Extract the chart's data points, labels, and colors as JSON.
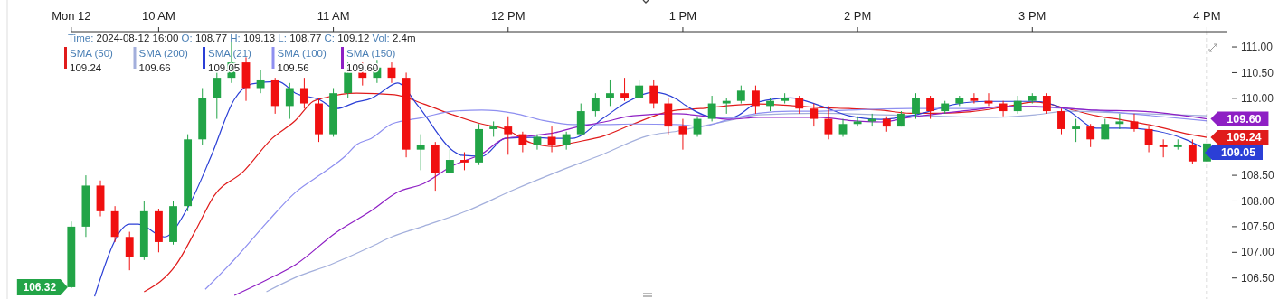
{
  "chart_data": {
    "type": "candlestick",
    "subtitle": "Time: 2024-08-12 16:00 O: 108.77 H: 109.13 L: 108.77 C: 109.12 Vol: 2.4m",
    "x": [
      "2024-08-12T09:30",
      "2024-08-12T09:35",
      "2024-08-12T09:40",
      "2024-08-12T09:45",
      "2024-08-12T09:50",
      "2024-08-12T09:55",
      "2024-08-12T10:00",
      "2024-08-12T10:05",
      "2024-08-12T10:10",
      "2024-08-12T10:15",
      "2024-08-12T10:20",
      "2024-08-12T10:25",
      "2024-08-12T10:30",
      "2024-08-12T10:35",
      "2024-08-12T10:40",
      "2024-08-12T10:45",
      "2024-08-12T10:50",
      "2024-08-12T10:55",
      "2024-08-12T11:00",
      "2024-08-12T11:05",
      "2024-08-12T11:10",
      "2024-08-12T11:15",
      "2024-08-12T11:20",
      "2024-08-12T11:25",
      "2024-08-12T11:30",
      "2024-08-12T11:35",
      "2024-08-12T11:40",
      "2024-08-12T11:45",
      "2024-08-12T11:50",
      "2024-08-12T11:55",
      "2024-08-12T12:00",
      "2024-08-12T12:05",
      "2024-08-12T12:10",
      "2024-08-12T12:15",
      "2024-08-12T12:20",
      "2024-08-12T12:25",
      "2024-08-12T12:30",
      "2024-08-12T12:35",
      "2024-08-12T12:40",
      "2024-08-12T12:45",
      "2024-08-12T12:50",
      "2024-08-12T12:55",
      "2024-08-12T13:00",
      "2024-08-12T13:05",
      "2024-08-12T13:10",
      "2024-08-12T13:15",
      "2024-08-12T13:20",
      "2024-08-12T13:25",
      "2024-08-12T13:30",
      "2024-08-12T13:35",
      "2024-08-12T13:40",
      "2024-08-12T13:45",
      "2024-08-12T13:50",
      "2024-08-12T13:55",
      "2024-08-12T14:00",
      "2024-08-12T14:05",
      "2024-08-12T14:10",
      "2024-08-12T14:15",
      "2024-08-12T14:20",
      "2024-08-12T14:25",
      "2024-08-12T14:30",
      "2024-08-12T14:35",
      "2024-08-12T14:40",
      "2024-08-12T14:45",
      "2024-08-12T14:50",
      "2024-08-12T14:55",
      "2024-08-12T15:00",
      "2024-08-12T15:05",
      "2024-08-12T15:10",
      "2024-08-12T15:15",
      "2024-08-12T15:20",
      "2024-08-12T15:25",
      "2024-08-12T15:30",
      "2024-08-12T15:35",
      "2024-08-12T15:40",
      "2024-08-12T15:45",
      "2024-08-12T15:50",
      "2024-08-12T15:55",
      "2024-08-12T16:00"
    ],
    "ohlc": [
      [
        106.32,
        107.6,
        106.3,
        107.5
      ],
      [
        107.5,
        108.5,
        107.3,
        108.3
      ],
      [
        108.3,
        108.4,
        107.7,
        107.8
      ],
      [
        107.8,
        107.9,
        107.2,
        107.3
      ],
      [
        107.3,
        107.4,
        106.65,
        106.9
      ],
      [
        106.9,
        108.0,
        106.85,
        107.8
      ],
      [
        107.8,
        107.85,
        107.0,
        107.2
      ],
      [
        107.2,
        108.0,
        107.15,
        107.9
      ],
      [
        107.9,
        109.3,
        107.8,
        109.2
      ],
      [
        109.2,
        110.2,
        109.1,
        110.0
      ],
      [
        110.0,
        110.5,
        109.6,
        110.4
      ],
      [
        110.4,
        111.1,
        110.3,
        110.7
      ],
      [
        110.7,
        110.8,
        109.95,
        110.2
      ],
      [
        110.2,
        110.55,
        110.1,
        110.35
      ],
      [
        110.35,
        110.4,
        109.7,
        109.85
      ],
      [
        109.85,
        110.3,
        109.6,
        110.2
      ],
      [
        110.2,
        110.4,
        109.8,
        109.9
      ],
      [
        109.9,
        110.0,
        109.15,
        109.3
      ],
      [
        109.3,
        110.2,
        109.25,
        110.1
      ],
      [
        110.1,
        110.7,
        110.0,
        110.5
      ],
      [
        110.5,
        110.7,
        110.25,
        110.4
      ],
      [
        110.4,
        110.75,
        110.3,
        110.6
      ],
      [
        110.6,
        110.7,
        110.3,
        110.4
      ],
      [
        110.4,
        110.5,
        108.85,
        109.0
      ],
      [
        109.0,
        109.3,
        108.6,
        109.1
      ],
      [
        109.1,
        109.15,
        108.2,
        108.55
      ],
      [
        108.55,
        109.0,
        108.55,
        108.8
      ],
      [
        108.8,
        108.95,
        108.6,
        108.75
      ],
      [
        108.75,
        109.5,
        108.7,
        109.4
      ],
      [
        109.4,
        109.55,
        109.25,
        109.45
      ],
      [
        109.45,
        109.65,
        108.9,
        109.3
      ],
      [
        109.3,
        109.35,
        108.95,
        109.1
      ],
      [
        109.1,
        109.3,
        109.0,
        109.25
      ],
      [
        109.25,
        109.45,
        108.95,
        109.1
      ],
      [
        109.1,
        109.35,
        109.0,
        109.3
      ],
      [
        109.3,
        109.9,
        109.3,
        109.75
      ],
      [
        109.75,
        110.1,
        109.65,
        110.0
      ],
      [
        110.0,
        110.35,
        109.85,
        110.1
      ],
      [
        110.1,
        110.4,
        109.95,
        110.0
      ],
      [
        110.0,
        110.35,
        110.0,
        110.25
      ],
      [
        110.25,
        110.35,
        109.8,
        109.9
      ],
      [
        109.9,
        110.0,
        109.3,
        109.45
      ],
      [
        109.45,
        109.6,
        109.0,
        109.3
      ],
      [
        109.3,
        109.65,
        109.25,
        109.6
      ],
      [
        109.6,
        110.05,
        109.55,
        109.9
      ],
      [
        109.9,
        110.0,
        109.7,
        109.95
      ],
      [
        109.95,
        110.25,
        109.9,
        110.15
      ],
      [
        110.15,
        110.25,
        109.7,
        109.85
      ],
      [
        109.85,
        110.0,
        109.75,
        109.95
      ],
      [
        109.95,
        110.1,
        109.9,
        110.0
      ],
      [
        110.0,
        110.05,
        109.7,
        109.8
      ],
      [
        109.8,
        109.9,
        109.45,
        109.6
      ],
      [
        109.6,
        109.85,
        109.2,
        109.3
      ],
      [
        109.3,
        109.6,
        109.25,
        109.5
      ],
      [
        109.5,
        109.65,
        109.45,
        109.55
      ],
      [
        109.55,
        109.7,
        109.45,
        109.6
      ],
      [
        109.6,
        109.65,
        109.35,
        109.45
      ],
      [
        109.45,
        109.75,
        109.45,
        109.7
      ],
      [
        109.7,
        110.1,
        109.6,
        110.0
      ],
      [
        110.0,
        110.05,
        109.6,
        109.75
      ],
      [
        109.75,
        109.95,
        109.7,
        109.9
      ],
      [
        109.9,
        110.05,
        109.85,
        110.0
      ],
      [
        110.0,
        110.1,
        109.9,
        109.95
      ],
      [
        109.95,
        110.1,
        109.85,
        109.9
      ],
      [
        109.9,
        109.95,
        109.65,
        109.75
      ],
      [
        109.75,
        110.05,
        109.7,
        109.95
      ],
      [
        109.95,
        110.1,
        109.9,
        110.05
      ],
      [
        110.05,
        110.1,
        109.7,
        109.75
      ],
      [
        109.75,
        109.8,
        109.3,
        109.4
      ],
      [
        109.4,
        109.6,
        109.15,
        109.45
      ],
      [
        109.45,
        109.5,
        109.05,
        109.2
      ],
      [
        109.2,
        109.6,
        109.2,
        109.5
      ],
      [
        109.5,
        109.7,
        109.4,
        109.55
      ],
      [
        109.55,
        109.7,
        109.35,
        109.4
      ],
      [
        109.4,
        109.45,
        108.95,
        109.1
      ],
      [
        109.1,
        109.2,
        108.85,
        109.05
      ],
      [
        109.05,
        109.2,
        109.0,
        109.1
      ],
      [
        109.1,
        109.2,
        108.72,
        108.77
      ],
      [
        108.77,
        109.13,
        108.77,
        109.12
      ]
    ],
    "series": [
      {
        "type": "line",
        "name": "SMA (50)",
        "color": "#e01b1b",
        "x": [
          "2024-08-12T09:55",
          "2024-08-12T10:06",
          "2024-08-12T10:13",
          "2024-08-12T10:19",
          "2024-08-12T10:29",
          "2024-08-12T10:39",
          "2024-08-12T10:47",
          "2024-08-12T10:53",
          "2024-08-12T10:57",
          "2024-08-12T11:08",
          "2024-08-12T11:21",
          "2024-08-12T11:31",
          "2024-08-12T11:41",
          "2024-08-12T11:51",
          "2024-08-12T11:59",
          "2024-08-12T12:08",
          "2024-08-12T12:16",
          "2024-08-12T12:22",
          "2024-08-12T12:33",
          "2024-08-12T12:43",
          "2024-08-12T12:53",
          "2024-08-12T12:58",
          "2024-08-12T13:06",
          "2024-08-12T13:16",
          "2024-08-12T13:26",
          "2024-08-12T13:37",
          "2024-08-12T13:47",
          "2024-08-12T13:57",
          "2024-08-12T14:08",
          "2024-08-12T14:18",
          "2024-08-12T14:28",
          "2024-08-12T14:39",
          "2024-08-12T14:51",
          "2024-08-12T15:01",
          "2024-08-12T15:12",
          "2024-08-12T15:22",
          "2024-08-12T15:32",
          "2024-08-12T15:43",
          "2024-08-12T15:53",
          "2024-08-12T16:00"
        ],
        "values": [
          106.23,
          106.76,
          107.46,
          108.1,
          108.57,
          109.22,
          109.57,
          109.94,
          110.01,
          110.1,
          110.07,
          109.89,
          109.68,
          109.5,
          109.4,
          109.13,
          109.06,
          109.13,
          109.27,
          109.5,
          109.71,
          109.77,
          109.8,
          109.86,
          109.89,
          109.86,
          109.82,
          109.8,
          109.77,
          109.71,
          109.71,
          109.74,
          109.84,
          109.93,
          109.8,
          109.66,
          109.57,
          109.45,
          109.31,
          109.24
        ],
        "value_labels": [
          null,
          null,
          null,
          null,
          null,
          null,
          null,
          null,
          null,
          null,
          null,
          null,
          null,
          null,
          null,
          null,
          null,
          null,
          null,
          null,
          null,
          null,
          null,
          null,
          null,
          null,
          null,
          null,
          null,
          null,
          null,
          null,
          null,
          null,
          null,
          null,
          null,
          null,
          null,
          "109.24"
        ]
      },
      {
        "type": "line",
        "name": "SMA (200)",
        "color": "#a3afdc",
        "x": [
          "2024-08-12T10:37",
          "2024-08-12T10:47",
          "2024-08-12T10:59",
          "2024-08-12T11:13",
          "2024-08-12T11:20",
          "2024-08-12T11:31",
          "2024-08-12T11:46",
          "2024-08-12T12:02",
          "2024-08-12T12:17",
          "2024-08-12T12:33",
          "2024-08-12T12:48",
          "2024-08-12T12:58",
          "2024-08-12T13:06",
          "2024-08-12T13:16",
          "2024-08-12T13:26",
          "2024-08-12T13:47",
          "2024-08-12T14:08",
          "2024-08-12T14:23",
          "2024-08-12T14:44",
          "2024-08-12T15:01",
          "2024-08-12T15:12",
          "2024-08-12T15:32",
          "2024-08-12T16:00"
        ],
        "values": [
          106.23,
          106.51,
          106.76,
          107.11,
          107.3,
          107.51,
          107.81,
          108.22,
          108.57,
          108.92,
          109.27,
          109.36,
          109.45,
          109.57,
          109.68,
          109.71,
          109.68,
          109.66,
          109.63,
          109.68,
          109.75,
          109.71,
          109.66
        ]
      },
      {
        "type": "line",
        "name": "SMA (21)",
        "color": "#2b3fd6",
        "x": [
          "2024-08-12T09:38",
          "2024-08-12T09:50",
          "2024-08-12T09:53",
          "2024-08-12T10:02",
          "2024-08-12T10:10",
          "2024-08-12T10:18",
          "2024-08-12T10:26",
          "2024-08-12T10:32",
          "2024-08-12T10:41",
          "2024-08-12T10:47",
          "2024-08-12T10:55",
          "2024-08-12T11:01",
          "2024-08-12T11:08",
          "2024-08-12T11:13",
          "2024-08-12T11:16",
          "2024-08-12T11:22",
          "2024-08-12T11:29",
          "2024-08-12T11:41",
          "2024-08-12T11:44",
          "2024-08-12T11:51",
          "2024-08-12T11:59",
          "2024-08-12T12:08",
          "2024-08-12T12:16",
          "2024-08-12T12:22",
          "2024-08-12T12:33",
          "2024-08-12T12:41",
          "2024-08-12T12:50",
          "2024-08-12T12:58",
          "2024-08-12T13:01",
          "2024-08-12T13:11",
          "2024-08-12T13:17",
          "2024-08-12T13:26",
          "2024-08-12T13:37",
          "2024-08-12T13:47",
          "2024-08-12T13:57",
          "2024-08-12T14:08",
          "2024-08-12T14:20",
          "2024-08-12T14:34",
          "2024-08-12T14:44",
          "2024-08-12T14:51",
          "2024-08-12T15:01",
          "2024-08-12T15:12",
          "2024-08-12T15:22",
          "2024-08-12T15:32",
          "2024-08-12T15:43",
          "2024-08-12T15:53",
          "2024-08-12T15:58"
        ],
        "values": [
          106.14,
          107.55,
          107.55,
          107.3,
          107.87,
          108.87,
          109.98,
          110.28,
          110.33,
          110.1,
          109.98,
          109.8,
          109.93,
          110.0,
          110.1,
          110.3,
          109.86,
          108.98,
          108.89,
          108.87,
          109.22,
          109.24,
          109.22,
          109.22,
          109.63,
          109.93,
          110.12,
          109.98,
          109.86,
          109.63,
          109.63,
          109.93,
          110.01,
          109.86,
          109.66,
          109.59,
          109.68,
          109.89,
          109.94,
          109.94,
          109.94,
          109.77,
          109.42,
          109.42,
          109.36,
          109.19,
          109.05
        ],
        "value_labels": [
          null,
          null,
          null,
          null,
          null,
          null,
          null,
          null,
          null,
          null,
          null,
          null,
          null,
          null,
          null,
          null,
          null,
          null,
          null,
          null,
          null,
          null,
          null,
          null,
          null,
          null,
          null,
          null,
          null,
          null,
          null,
          null,
          null,
          null,
          null,
          null,
          null,
          null,
          null,
          null,
          null,
          null,
          null,
          null,
          null,
          null,
          "109.05"
        ]
      },
      {
        "type": "line",
        "name": "SMA (100)",
        "color": "#8e8ff0",
        "x": [
          "2024-08-12T10:16",
          "2024-08-12T10:26",
          "2024-08-12T10:37",
          "2024-08-12T10:47",
          "2024-08-12T10:57",
          "2024-08-12T11:04",
          "2024-08-12T11:08",
          "2024-08-12T11:13",
          "2024-08-12T11:20",
          "2024-08-12T11:31",
          "2024-08-12T11:41",
          "2024-08-12T11:51",
          "2024-08-12T12:02",
          "2024-08-12T12:12",
          "2024-08-12T12:22",
          "2024-08-12T12:33",
          "2024-08-12T12:43",
          "2024-08-12T12:58",
          "2024-08-12T13:06",
          "2024-08-12T13:16",
          "2024-08-12T13:26",
          "2024-08-12T13:37",
          "2024-08-12T13:47",
          "2024-08-12T13:57",
          "2024-08-12T14:18",
          "2024-08-12T14:39",
          "2024-08-12T14:51",
          "2024-08-12T15:12",
          "2024-08-12T15:32",
          "2024-08-12T16:00"
        ],
        "values": [
          106.28,
          106.86,
          107.57,
          108.17,
          108.57,
          108.87,
          109.1,
          109.22,
          109.5,
          109.63,
          109.75,
          109.77,
          109.71,
          109.57,
          109.49,
          109.49,
          109.5,
          109.49,
          109.45,
          109.59,
          109.71,
          109.75,
          109.75,
          109.77,
          109.8,
          109.8,
          109.84,
          109.8,
          109.71,
          109.56
        ]
      },
      {
        "type": "line",
        "name": "SMA (150)",
        "color": "#8e1fc4",
        "x": [
          "2024-08-12T10:26",
          "2024-08-12T10:37",
          "2024-08-12T10:47",
          "2024-08-12T11:01",
          "2024-08-12T11:13",
          "2024-08-12T11:22",
          "2024-08-12T11:31",
          "2024-08-12T11:41",
          "2024-08-12T11:51",
          "2024-08-12T11:59",
          "2024-08-12T12:08",
          "2024-08-12T12:16",
          "2024-08-12T12:22",
          "2024-08-12T12:33",
          "2024-08-12T12:43",
          "2024-08-12T12:58",
          "2024-08-12T13:06",
          "2024-08-12T13:16",
          "2024-08-12T13:26",
          "2024-08-12T13:47",
          "2024-08-12T13:57",
          "2024-08-12T14:08",
          "2024-08-12T14:18",
          "2024-08-12T14:39",
          "2024-08-12T14:51",
          "2024-08-12T15:01",
          "2024-08-12T15:22",
          "2024-08-12T15:37",
          "2024-08-12T16:00"
        ],
        "values": [
          106.16,
          106.46,
          106.76,
          107.39,
          107.81,
          108.17,
          108.34,
          108.69,
          108.92,
          109.22,
          109.27,
          109.33,
          109.42,
          109.54,
          109.66,
          109.7,
          109.66,
          109.59,
          109.63,
          109.63,
          109.57,
          109.54,
          109.63,
          109.77,
          109.84,
          109.84,
          109.77,
          109.75,
          109.6
        ],
        "value_labels": [
          null,
          null,
          null,
          null,
          null,
          null,
          null,
          null,
          null,
          null,
          null,
          null,
          null,
          null,
          null,
          null,
          null,
          null,
          null,
          null,
          null,
          null,
          null,
          null,
          null,
          null,
          null,
          null,
          "109.60"
        ]
      }
    ],
    "xlim": [
      "2024-08-12T09:08",
      "2024-08-12T16:07"
    ],
    "xticks": [
      {
        "value": "2024-08-12T09:30",
        "label": "Mon 12"
      },
      {
        "value": "2024-08-12T10:00",
        "label": "10 AM"
      },
      {
        "value": "2024-08-12T11:00",
        "label": "11 AM"
      },
      {
        "value": "2024-08-12T12:00",
        "label": "12 PM"
      },
      {
        "value": "2024-08-12T13:00",
        "label": "1 PM"
      },
      {
        "value": "2024-08-12T14:00",
        "label": "2 PM"
      },
      {
        "value": "2024-08-12T15:00",
        "label": "3 PM"
      },
      {
        "value": "2024-08-12T16:00",
        "label": "4 PM"
      }
    ],
    "ylim": [
      106.09,
      111.3
    ],
    "yticks": [
      {
        "value": 106.5,
        "label": "106.50"
      },
      {
        "value": 107,
        "label": "107.00"
      },
      {
        "value": 107.5,
        "label": "107.50"
      },
      {
        "value": 108,
        "label": "108.00"
      },
      {
        "value": 108.5,
        "label": "108.50"
      },
      {
        "value": 110,
        "label": "110.00"
      },
      {
        "value": 110.5,
        "label": "110.50"
      },
      {
        "value": 111,
        "label": "111.00"
      }
    ],
    "ref_lines": [
      {
        "axis": "x",
        "value": "2024-08-12T16:00",
        "color": "#555555",
        "line_style": "dashed"
      }
    ],
    "annotations": [
      "109.24",
      "109.66",
      "109.05",
      "109.56",
      "109.60",
      {
        "text": "106.32",
        "x": "2024-08-12T09:30",
        "y": 106.32
      }
    ],
    "legend": "top left",
    "grid": false
  }
}
